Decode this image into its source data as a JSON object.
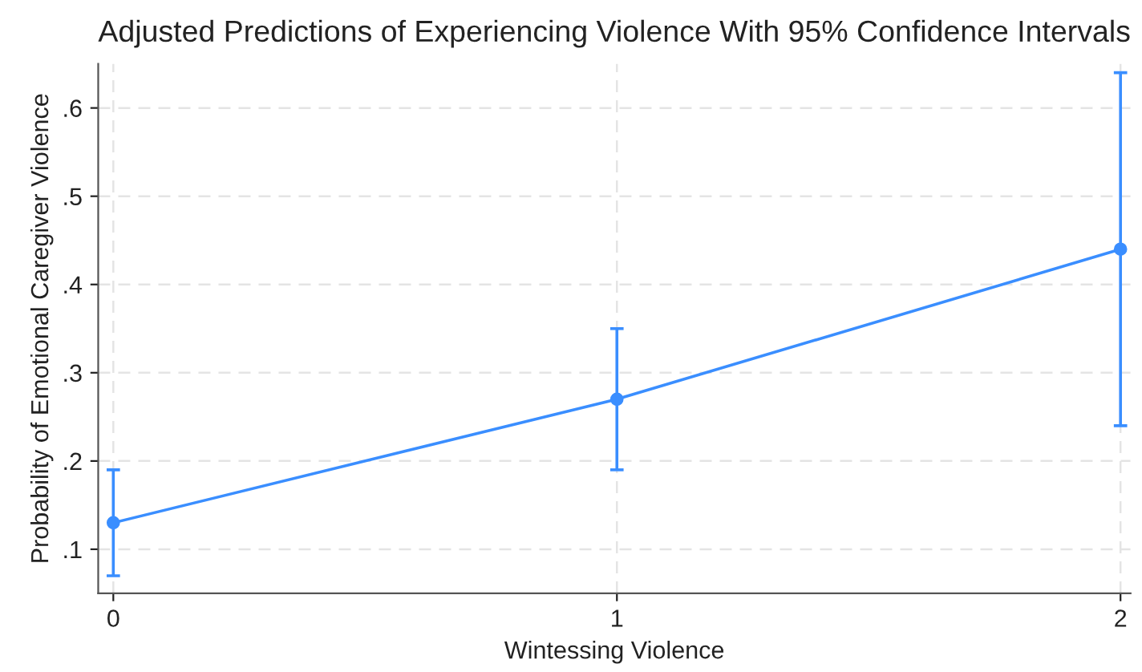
{
  "chart_data": {
    "type": "line",
    "title": "Adjusted Predictions of Experiencing Violence With 95% Confidence Intervals",
    "xlabel": "Wintessing Violence",
    "ylabel": "Probability of Emotional Caregiver Violence",
    "x": [
      0,
      1,
      2
    ],
    "series": [
      {
        "color": "#3a8eff",
        "values": [
          0.13,
          0.27,
          0.44
        ],
        "errors": [
          [
            0.07,
            0.19
          ],
          [
            0.19,
            0.35
          ],
          [
            0.24,
            0.64
          ]
        ]
      }
    ],
    "xlim": [
      -0.03,
      2.02
    ],
    "xticks": [
      0,
      1,
      2
    ],
    "ylim": [
      0.05,
      0.65
    ],
    "yticks": [
      {
        "value": 0.1,
        "label": ".1"
      },
      {
        "value": 0.2,
        "label": ".2"
      },
      {
        "value": 0.3,
        "label": ".3"
      },
      {
        "value": 0.4,
        "label": ".4"
      },
      {
        "value": 0.5,
        "label": ".5"
      },
      {
        "value": 0.6,
        "label": ".6"
      }
    ],
    "grid": true,
    "marker": "circle",
    "line_style": "solid"
  }
}
